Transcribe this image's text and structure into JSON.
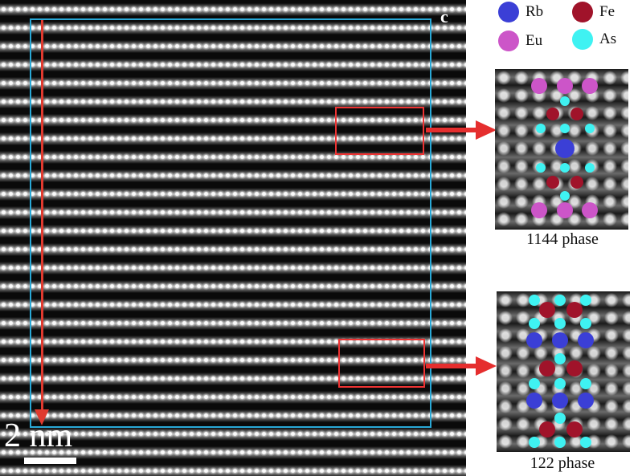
{
  "panel_label": "c",
  "scale_bar": {
    "text": "2 nm"
  },
  "legend": [
    {
      "id": "rb",
      "label": "Rb",
      "color": "#3b3fd6"
    },
    {
      "id": "fe",
      "label": "Fe",
      "color": "#a0132a"
    },
    {
      "id": "eu",
      "label": "Eu",
      "color": "#cc55c8"
    },
    {
      "id": "as",
      "label": "As",
      "color": "#3ff2f2"
    }
  ],
  "insets": [
    {
      "caption": "1144 phase"
    },
    {
      "caption": "122 phase"
    }
  ],
  "colors": {
    "frame": "#29a8d6",
    "highlight": "#e33",
    "arrow": "#e03a2f"
  }
}
